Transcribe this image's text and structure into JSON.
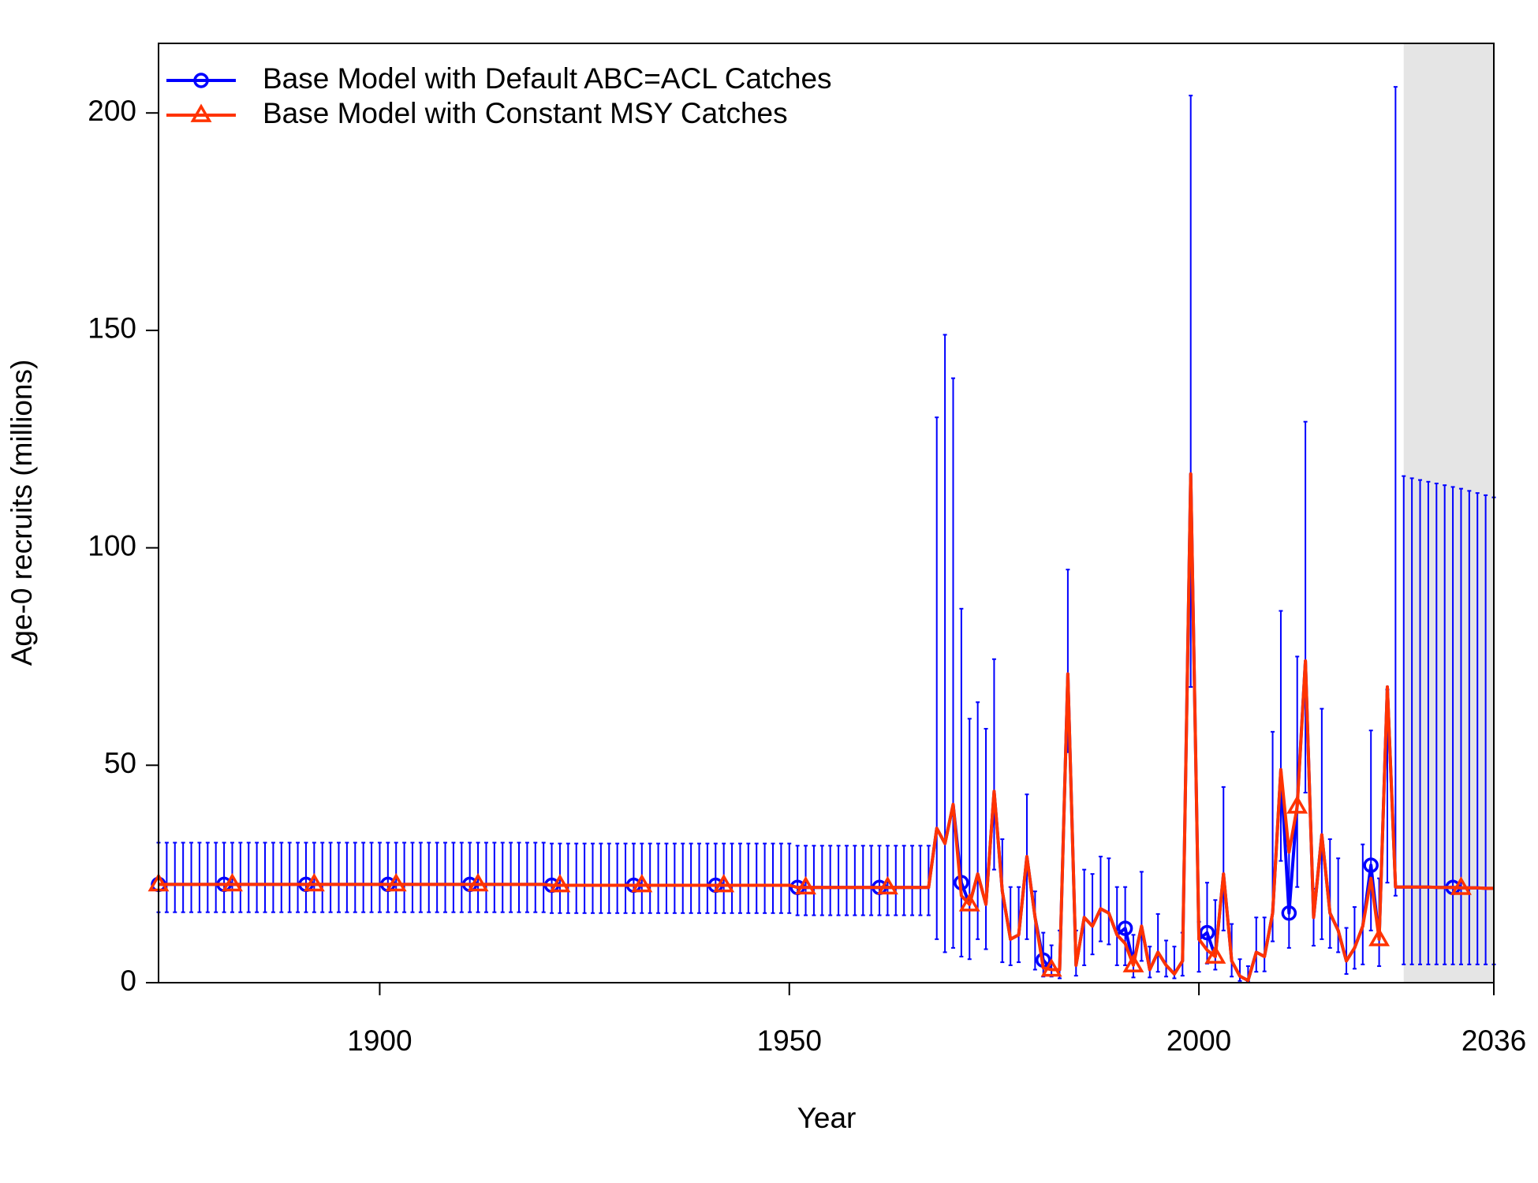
{
  "chart_data": {
    "type": "line",
    "xlabel": "Year",
    "ylabel": "Age-0 recruits (millions)",
    "x": [
      1873,
      1874,
      1875,
      1876,
      1877,
      1878,
      1879,
      1880,
      1881,
      1882,
      1883,
      1884,
      1885,
      1886,
      1887,
      1888,
      1889,
      1890,
      1891,
      1892,
      1893,
      1894,
      1895,
      1896,
      1897,
      1898,
      1899,
      1900,
      1901,
      1902,
      1903,
      1904,
      1905,
      1906,
      1907,
      1908,
      1909,
      1910,
      1911,
      1912,
      1913,
      1914,
      1915,
      1916,
      1917,
      1918,
      1919,
      1920,
      1921,
      1922,
      1923,
      1924,
      1925,
      1926,
      1927,
      1928,
      1929,
      1930,
      1931,
      1932,
      1933,
      1934,
      1935,
      1936,
      1937,
      1938,
      1939,
      1940,
      1941,
      1942,
      1943,
      1944,
      1945,
      1946,
      1947,
      1948,
      1949,
      1950,
      1951,
      1952,
      1953,
      1954,
      1955,
      1956,
      1957,
      1958,
      1959,
      1960,
      1961,
      1962,
      1963,
      1964,
      1965,
      1966,
      1967,
      1968,
      1969,
      1970,
      1971,
      1972,
      1973,
      1974,
      1975,
      1976,
      1977,
      1978,
      1979,
      1980,
      1981,
      1982,
      1983,
      1984,
      1985,
      1986,
      1987,
      1988,
      1989,
      1990,
      1991,
      1992,
      1993,
      1994,
      1995,
      1996,
      1997,
      1998,
      1999,
      2000,
      2001,
      2002,
      2003,
      2004,
      2005,
      2006,
      2007,
      2008,
      2009,
      2010,
      2011,
      2012,
      2013,
      2014,
      2015,
      2016,
      2017,
      2018,
      2019,
      2020,
      2021,
      2022,
      2023,
      2024,
      2025,
      2026,
      2027,
      2028,
      2029,
      2030,
      2031,
      2032,
      2033,
      2034,
      2035,
      2036
    ],
    "series": [
      {
        "name": "Base Model with Default ABC=ACL Catches",
        "color": "#0000ff",
        "marker": "circle",
        "values": [
          22.6,
          22.6,
          22.6,
          22.6,
          22.6,
          22.6,
          22.6,
          22.6,
          22.6,
          22.6,
          22.6,
          22.6,
          22.6,
          22.6,
          22.6,
          22.6,
          22.6,
          22.6,
          22.6,
          22.6,
          22.6,
          22.6,
          22.6,
          22.6,
          22.6,
          22.6,
          22.6,
          22.6,
          22.6,
          22.6,
          22.6,
          22.6,
          22.6,
          22.6,
          22.6,
          22.6,
          22.6,
          22.6,
          22.6,
          22.6,
          22.6,
          22.6,
          22.6,
          22.6,
          22.6,
          22.6,
          22.6,
          22.6,
          22.4,
          22.4,
          22.4,
          22.4,
          22.4,
          22.4,
          22.4,
          22.4,
          22.4,
          22.4,
          22.4,
          22.4,
          22.4,
          22.4,
          22.4,
          22.4,
          22.4,
          22.4,
          22.4,
          22.4,
          22.4,
          22.4,
          22.4,
          22.4,
          22.4,
          22.4,
          22.4,
          22.4,
          22.4,
          22.4,
          21.9,
          21.9,
          21.9,
          21.9,
          21.9,
          21.9,
          21.9,
          21.9,
          21.9,
          21.9,
          21.9,
          21.9,
          21.9,
          21.9,
          21.9,
          21.9,
          21.9,
          35.5,
          32,
          41,
          23,
          18,
          25,
          18,
          44,
          21,
          10,
          11,
          29,
          15,
          5.2,
          3,
          3,
          71,
          4,
          15,
          13,
          17,
          16,
          11,
          12.5,
          4.5,
          13,
          3,
          7,
          4,
          2,
          5,
          117,
          10,
          11.5,
          6,
          25,
          5,
          1.5,
          0.5,
          7,
          6,
          16,
          49,
          16,
          41,
          74,
          15,
          34,
          16,
          12,
          5,
          8,
          13,
          27,
          10,
          68,
          22,
          22,
          22,
          22,
          22,
          21.9,
          21.9,
          21.9,
          21.8,
          21.8,
          21.8,
          21.7,
          21.7
        ],
        "lower": [
          16.2,
          16.2,
          16.2,
          16.2,
          16.2,
          16.2,
          16.2,
          16.2,
          16.2,
          16.2,
          16.2,
          16.2,
          16.2,
          16.2,
          16.2,
          16.2,
          16.2,
          16.2,
          16.2,
          16.2,
          16.2,
          16.2,
          16.2,
          16.2,
          16.2,
          16.2,
          16.2,
          16.2,
          16.2,
          16.2,
          16.2,
          16.2,
          16.2,
          16.2,
          16.2,
          16.2,
          16.2,
          16.2,
          16.2,
          16.2,
          16.2,
          16.2,
          16.2,
          16.2,
          16.2,
          16.2,
          16.2,
          16.2,
          16,
          16,
          16,
          16,
          16,
          16,
          16,
          16,
          16,
          16,
          16,
          16,
          16,
          16,
          16,
          16,
          16,
          16,
          16,
          16,
          16,
          16,
          16,
          16,
          16,
          16,
          16,
          16,
          16,
          16,
          15.5,
          15.5,
          15.5,
          15.5,
          15.5,
          15.5,
          15.5,
          15.5,
          15.5,
          15.5,
          15.5,
          15.5,
          15.5,
          15.5,
          15.5,
          15.5,
          15.5,
          10,
          7,
          8,
          6,
          5.4,
          10,
          7.7,
          26,
          4.7,
          4,
          4.7,
          10,
          3,
          1.4,
          1.4,
          1,
          53,
          1.6,
          4,
          6.5,
          9.5,
          8.8,
          4,
          4,
          1.2,
          5,
          1.2,
          2.5,
          1.4,
          1,
          1.6,
          68,
          2.5,
          4.4,
          3,
          12,
          1.4,
          0.4,
          0.3,
          2.5,
          2.6,
          9.5,
          28,
          8,
          22,
          43.7,
          8.5,
          10,
          8,
          7,
          2,
          3.2,
          4.2,
          12,
          3.8,
          23,
          20,
          4.2,
          4.2,
          4.2,
          4.2,
          4.2,
          4.2,
          4.2,
          4.2,
          4.2,
          4.2,
          4.2,
          4.2
        ],
        "upper": [
          32.2,
          32.2,
          32.2,
          32.2,
          32.2,
          32.2,
          32.2,
          32.2,
          32.2,
          32.2,
          32.2,
          32.2,
          32.2,
          32.2,
          32.2,
          32.2,
          32.2,
          32.2,
          32.2,
          32.2,
          32.2,
          32.2,
          32.2,
          32.2,
          32.2,
          32.2,
          32.2,
          32.2,
          32.2,
          32.2,
          32.2,
          32.2,
          32.2,
          32.2,
          32.2,
          32.2,
          32.2,
          32.2,
          32.2,
          32.2,
          32.2,
          32.2,
          32.2,
          32.2,
          32.2,
          32.2,
          32.2,
          32.2,
          32,
          32,
          32,
          32,
          32,
          32,
          32,
          32,
          32,
          32,
          32,
          32,
          32,
          32,
          32,
          32,
          32,
          32,
          32,
          32,
          32,
          32,
          32,
          32,
          32,
          32,
          32,
          32,
          32,
          32,
          31.5,
          31.5,
          31.5,
          31.5,
          31.5,
          31.5,
          31.5,
          31.5,
          31.5,
          31.5,
          31.5,
          31.5,
          31.5,
          31.5,
          31.5,
          31.5,
          31.5,
          130,
          149,
          139,
          86,
          60.7,
          64.5,
          58.4,
          74.4,
          33,
          22,
          22,
          43.3,
          21,
          11.5,
          8.6,
          12,
          95,
          12,
          26,
          25,
          29,
          28.6,
          22,
          22,
          11,
          25.5,
          8.3,
          15.8,
          9.7,
          8.3,
          11.5,
          204,
          14,
          23,
          19,
          45,
          13.5,
          5.4,
          3.8,
          15,
          15,
          57.7,
          85.5,
          32.5,
          75,
          129,
          21.6,
          63,
          33,
          28.6,
          12.6,
          17.4,
          31.8,
          58,
          24,
          67.4,
          206,
          116.5,
          116,
          115.6,
          115.2,
          114.8,
          114.4,
          114,
          113.6,
          113.1,
          112.6,
          112.1,
          111.6
        ]
      },
      {
        "name": "Base Model with Constant MSY Catches",
        "color": "#ff3300",
        "marker": "triangle",
        "values": [
          22.6,
          22.6,
          22.6,
          22.6,
          22.6,
          22.6,
          22.6,
          22.6,
          22.6,
          22.6,
          22.6,
          22.6,
          22.6,
          22.6,
          22.6,
          22.6,
          22.6,
          22.6,
          22.6,
          22.6,
          22.6,
          22.6,
          22.6,
          22.6,
          22.6,
          22.6,
          22.6,
          22.6,
          22.6,
          22.6,
          22.6,
          22.6,
          22.6,
          22.6,
          22.6,
          22.6,
          22.6,
          22.6,
          22.6,
          22.6,
          22.6,
          22.6,
          22.6,
          22.6,
          22.6,
          22.6,
          22.6,
          22.6,
          22.4,
          22.4,
          22.4,
          22.4,
          22.4,
          22.4,
          22.4,
          22.4,
          22.4,
          22.4,
          22.4,
          22.4,
          22.4,
          22.4,
          22.4,
          22.4,
          22.4,
          22.4,
          22.4,
          22.4,
          22.4,
          22.4,
          22.4,
          22.4,
          22.4,
          22.4,
          22.4,
          22.4,
          22.4,
          22.4,
          21.9,
          21.9,
          21.9,
          21.9,
          21.9,
          21.9,
          21.9,
          21.9,
          21.9,
          21.9,
          21.9,
          21.9,
          21.9,
          21.9,
          21.9,
          21.9,
          21.9,
          35.5,
          32,
          41,
          20,
          18,
          25,
          18,
          44,
          21,
          10,
          11,
          29,
          15,
          3.4,
          3,
          3,
          71,
          4,
          15,
          13,
          17,
          16,
          11,
          9,
          4,
          13,
          3,
          7,
          4,
          2,
          5,
          117,
          10,
          7.5,
          6,
          25,
          5,
          1.5,
          0.5,
          7,
          6,
          16,
          49,
          30,
          40.5,
          74,
          15,
          34,
          16,
          12,
          5,
          8,
          13,
          24,
          10,
          68,
          22,
          22,
          22,
          22,
          22,
          21.9,
          21.9,
          21.9,
          21.8,
          21.8,
          21.8,
          21.7,
          21.7
        ]
      }
    ],
    "xlim": [
      1873,
      2036
    ],
    "xticks": [
      1900,
      1950,
      2000,
      2036
    ],
    "ylim": [
      0,
      216
    ],
    "yticks": [
      0,
      50,
      100,
      150,
      200
    ],
    "shaded_region": [
      2025,
      2036
    ],
    "shade_color": "#e5e5e5",
    "legend": "top-left"
  }
}
